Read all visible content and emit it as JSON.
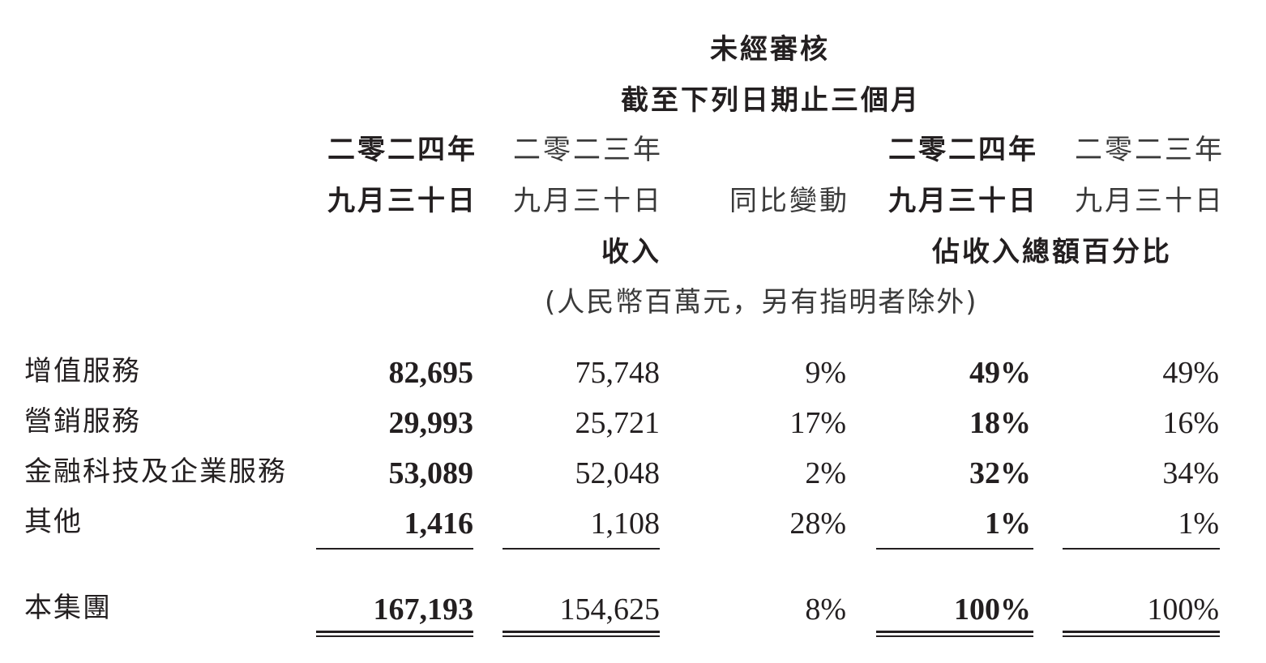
{
  "header": {
    "audit": "未經審核",
    "period": "截至下列日期止三個月",
    "col_year_2024": "二零二四年",
    "col_year_2023": "二零二三年",
    "col_date": "九月三十日",
    "yoy": "同比變動",
    "revenue": "收入",
    "pct_of_total": "佔收入總額百分比",
    "unit": "(人民幣百萬元，另有指明者除外)"
  },
  "rows": [
    {
      "label": "增值服務",
      "rev_2024": "82,695",
      "rev_2023": "75,748",
      "yoy": "9%",
      "pct_2024": "49%",
      "pct_2023": "49%"
    },
    {
      "label": "營銷服務",
      "rev_2024": "29,993",
      "rev_2023": "25,721",
      "yoy": "17%",
      "pct_2024": "18%",
      "pct_2023": "16%"
    },
    {
      "label": "金融科技及企業服務",
      "rev_2024": "53,089",
      "rev_2023": "52,048",
      "yoy": "2%",
      "pct_2024": "32%",
      "pct_2023": "34%"
    },
    {
      "label": "其他",
      "rev_2024": "1,416",
      "rev_2023": "1,108",
      "yoy": "28%",
      "pct_2024": "1%",
      "pct_2023": "1%"
    }
  ],
  "total": {
    "label": "本集團",
    "rev_2024": "167,193",
    "rev_2023": "154,625",
    "yoy": "8%",
    "pct_2024": "100%",
    "pct_2023": "100%"
  }
}
